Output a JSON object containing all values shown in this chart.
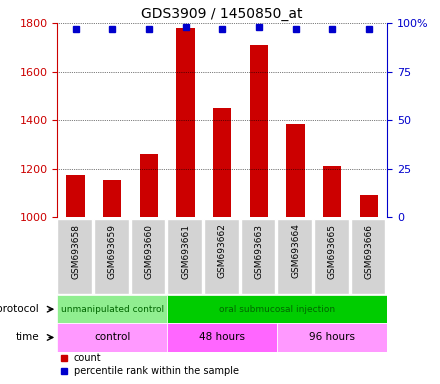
{
  "title": "GDS3909 / 1450850_at",
  "samples": [
    "GSM693658",
    "GSM693659",
    "GSM693660",
    "GSM693661",
    "GSM693662",
    "GSM693663",
    "GSM693664",
    "GSM693665",
    "GSM693666"
  ],
  "counts": [
    1175,
    1155,
    1260,
    1780,
    1450,
    1710,
    1385,
    1210,
    1090
  ],
  "percentile_ranks": [
    97,
    97,
    97,
    98,
    97,
    98,
    97,
    97,
    97
  ],
  "ylim_left": [
    1000,
    1800
  ],
  "ylim_right": [
    0,
    100
  ],
  "yticks_left": [
    1000,
    1200,
    1400,
    1600,
    1800
  ],
  "yticks_right": [
    0,
    25,
    50,
    75,
    100
  ],
  "bar_color": "#cc0000",
  "dot_color": "#0000cc",
  "protocol_groups": [
    {
      "label": "unmanipulated control",
      "start": 0,
      "end": 3,
      "color": "#90ee90"
    },
    {
      "label": "oral submucosal injection",
      "start": 3,
      "end": 9,
      "color": "#00cc00"
    }
  ],
  "time_groups": [
    {
      "label": "control",
      "start": 0,
      "end": 3,
      "color": "#ff99ff"
    },
    {
      "label": "48 hours",
      "start": 3,
      "end": 6,
      "color": "#ff66ff"
    },
    {
      "label": "96 hours",
      "start": 6,
      "end": 9,
      "color": "#ff99ff"
    }
  ],
  "legend_count_color": "#cc0000",
  "legend_percentile_color": "#0000cc",
  "grid_color": "#000000",
  "axis_label_color_left": "#cc0000",
  "axis_label_color_right": "#0000cc",
  "sample_box_color": "#d3d3d3",
  "background_color": "#ffffff"
}
